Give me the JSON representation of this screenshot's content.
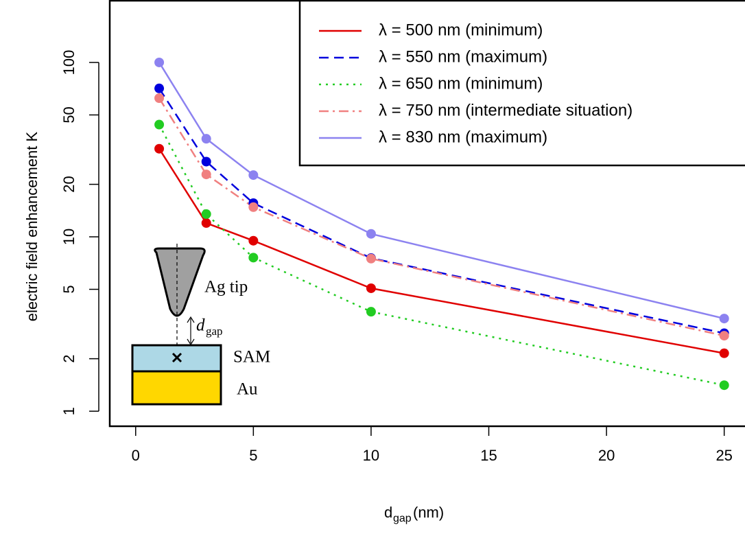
{
  "chart_data": {
    "type": "line",
    "markers": true,
    "log_y": true,
    "y_label": "electric field enhancement K",
    "x_label": "d",
    "x_label_sub": "gap",
    "x_label_unit": "(nm)",
    "x": [
      1,
      3,
      5,
      10,
      25
    ],
    "series": [
      {
        "name": "λ = 500 nm (minimum)",
        "color": "#e00000",
        "dash": "solid",
        "values": [
          32,
          12,
          9.5,
          5.07,
          2.15
        ]
      },
      {
        "name": "λ = 550 nm (maximum)",
        "color": "#0000dd",
        "dash": "dashed",
        "values": [
          71,
          27,
          15.6,
          7.55,
          2.8
        ]
      },
      {
        "name": "λ = 650 nm (minimum)",
        "color": "#22cc22",
        "dash": "dotted",
        "values": [
          44,
          13.5,
          7.6,
          3.72,
          1.41
        ]
      },
      {
        "name": "λ = 750 nm (intermediate situation)",
        "color": "#f08080",
        "dash": "dashdot",
        "values": [
          62.4,
          22.8,
          14.8,
          7.5,
          2.71
        ]
      },
      {
        "name": "λ = 830 nm (maximum)",
        "color": "#8c82f0",
        "dash": "solid",
        "values": [
          100,
          36.5,
          22.6,
          10.4,
          3.4
        ]
      }
    ],
    "xlim": [
      -1.1,
      26
    ],
    "ylim": [
      0.82,
      226
    ],
    "xticks": [
      0,
      5,
      10,
      15,
      20,
      25
    ],
    "yticks": [
      1,
      2,
      5,
      10,
      20,
      50,
      100
    ],
    "legend": "top-right",
    "inset": {
      "tip_label": "Ag tip",
      "gap_label": "d",
      "gap_subscript": "gap",
      "layer_labels": [
        "SAM",
        "Au"
      ]
    }
  }
}
